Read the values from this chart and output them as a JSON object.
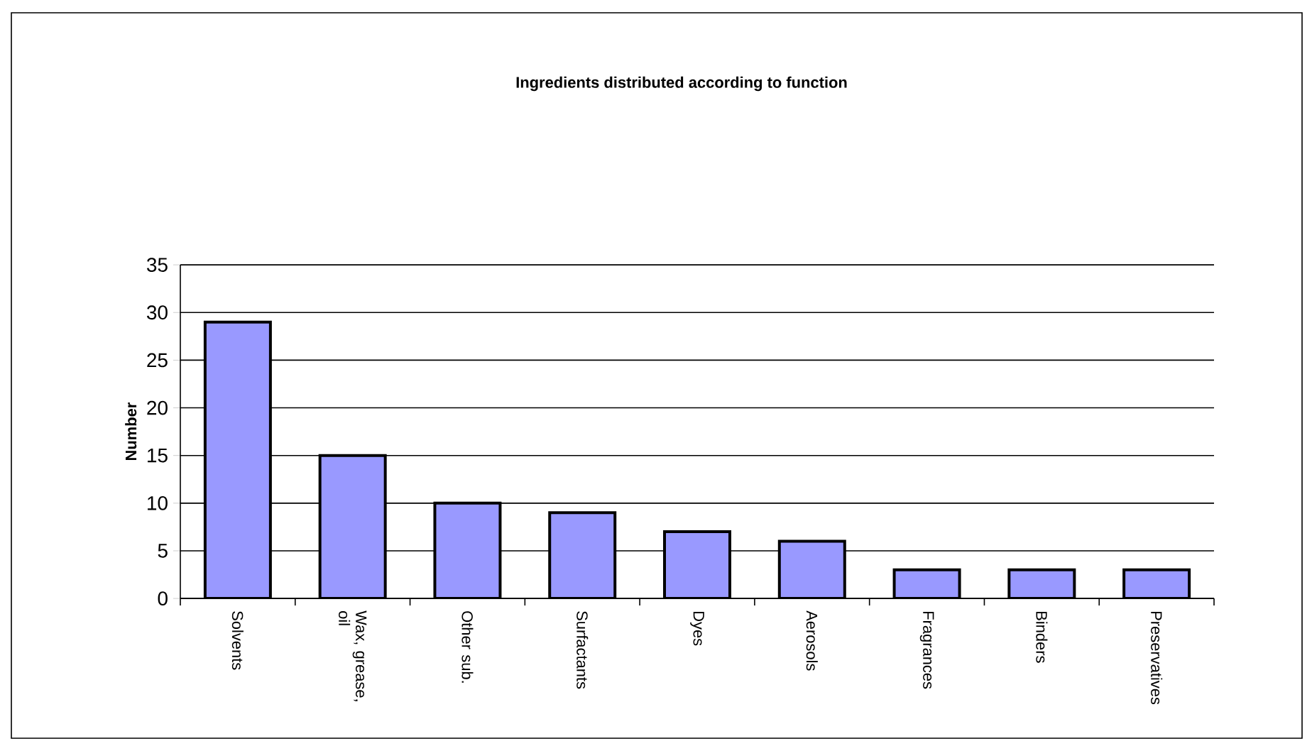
{
  "chart_data": {
    "type": "bar",
    "title": "Ingredients distributed according to function",
    "ylabel": "Number",
    "categories": [
      "Solvents",
      "Wax, grease, oil",
      "Other sub.",
      "Surfactants",
      "Dyes",
      "Aerosols",
      "Fragrances",
      "Binders",
      "Preservatives"
    ],
    "values": [
      29,
      15,
      10,
      9,
      7,
      6,
      3,
      3,
      3
    ],
    "color": "#9999ff",
    "ylim": [
      0,
      35
    ],
    "yticks": [
      0,
      5,
      10,
      15,
      20,
      25,
      30,
      35
    ],
    "grid": "y"
  }
}
